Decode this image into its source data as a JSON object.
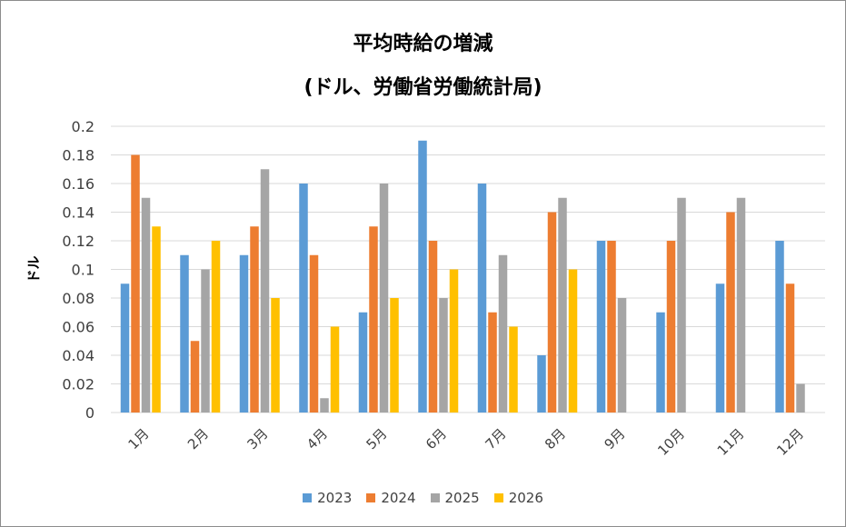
{
  "chart_data": {
    "type": "bar",
    "title": "平均時給の増減",
    "subtitle": "(ドル、労働省労働統計局)",
    "ylabel": "ドル",
    "xlabel": "",
    "ylim": [
      0,
      0.2
    ],
    "yticks": [
      "0",
      "0.02",
      "0.04",
      "0.06",
      "0.08",
      "0.1",
      "0.12",
      "0.14",
      "0.16",
      "0.18",
      "0.2"
    ],
    "categories": [
      "1月",
      "2月",
      "3月",
      "4月",
      "5月",
      "6月",
      "7月",
      "8月",
      "9月",
      "10月",
      "11月",
      "12月"
    ],
    "series": [
      {
        "name": "2023",
        "color": "#5B9BD5",
        "values": [
          0.09,
          0.11,
          0.11,
          0.16,
          0.07,
          0.19,
          0.16,
          0.04,
          0.12,
          0.07,
          0.09,
          0.12
        ]
      },
      {
        "name": "2024",
        "color": "#ED7D31",
        "values": [
          0.18,
          0.05,
          0.13,
          0.11,
          0.13,
          0.12,
          0.07,
          0.14,
          0.12,
          0.12,
          0.14,
          0.09
        ]
      },
      {
        "name": "2025",
        "color": "#A5A5A5",
        "values": [
          0.15,
          0.1,
          0.17,
          0.01,
          0.16,
          0.08,
          0.11,
          0.15,
          0.08,
          0.15,
          0.15,
          0.02
        ]
      },
      {
        "name": "2026",
        "color": "#FFC000",
        "values": [
          0.13,
          0.12,
          0.08,
          0.06,
          0.08,
          0.1,
          0.06,
          0.1,
          null,
          null,
          null,
          null
        ]
      }
    ],
    "grid": true,
    "legend_position": "bottom"
  }
}
